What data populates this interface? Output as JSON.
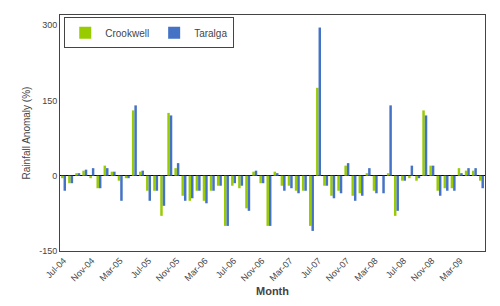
{
  "chart_data": {
    "type": "bar",
    "xlabel": "Month",
    "ylabel": "Rainfall Anomaly (%)",
    "categories": [
      "Jul-04",
      null,
      null,
      null,
      "Nov-04",
      null,
      null,
      null,
      "Mar-05",
      null,
      null,
      null,
      "Jul-05",
      null,
      null,
      null,
      "Nov-05",
      null,
      null,
      null,
      "Mar-06",
      null,
      null,
      null,
      "Jul-06",
      null,
      null,
      null,
      "Nov-06",
      null,
      null,
      null,
      "Mar-07",
      null,
      null,
      null,
      "Jul-07",
      null,
      null,
      null,
      "Nov-07",
      null,
      null,
      null,
      "Mar-08",
      null,
      null,
      null,
      "Jul-08",
      null,
      null,
      null,
      "Nov-08",
      null,
      null,
      null,
      "Mar-09",
      null,
      null,
      null
    ],
    "series": [
      {
        "name": "Crookwell",
        "color": "#99CC00",
        "values": [
          -5,
          -15,
          5,
          10,
          -5,
          -25,
          20,
          8,
          -10,
          -5,
          130,
          8,
          -30,
          -30,
          -80,
          125,
          15,
          -40,
          -50,
          -30,
          -50,
          -30,
          -20,
          -100,
          -20,
          -25,
          -65,
          8,
          -15,
          -100,
          8,
          -20,
          -20,
          -30,
          -30,
          -100,
          175,
          -20,
          -40,
          -30,
          20,
          -40,
          -35,
          5,
          -30,
          0,
          5,
          -80,
          -10,
          -5,
          -10,
          130,
          20,
          -30,
          -25,
          -25,
          15,
          10,
          10,
          -10
        ]
      },
      {
        "name": "Taralga",
        "color": "#4472C4",
        "values": [
          -30,
          -15,
          5,
          12,
          15,
          -25,
          15,
          8,
          -50,
          -5,
          140,
          10,
          -50,
          -30,
          -60,
          120,
          25,
          -50,
          -45,
          -30,
          -55,
          -30,
          -20,
          -100,
          -15,
          -20,
          -70,
          10,
          -15,
          -100,
          5,
          -30,
          -25,
          -35,
          -30,
          -110,
          295,
          -20,
          -45,
          -35,
          25,
          -50,
          -40,
          15,
          -35,
          -35,
          140,
          -70,
          -10,
          20,
          -5,
          120,
          20,
          -40,
          -30,
          -30,
          5,
          15,
          15,
          -25
        ]
      }
    ],
    "ylim": [
      -150,
      320
    ],
    "yticks": [
      -150,
      0,
      150,
      300
    ],
    "grid": false,
    "legend": "upper left"
  }
}
